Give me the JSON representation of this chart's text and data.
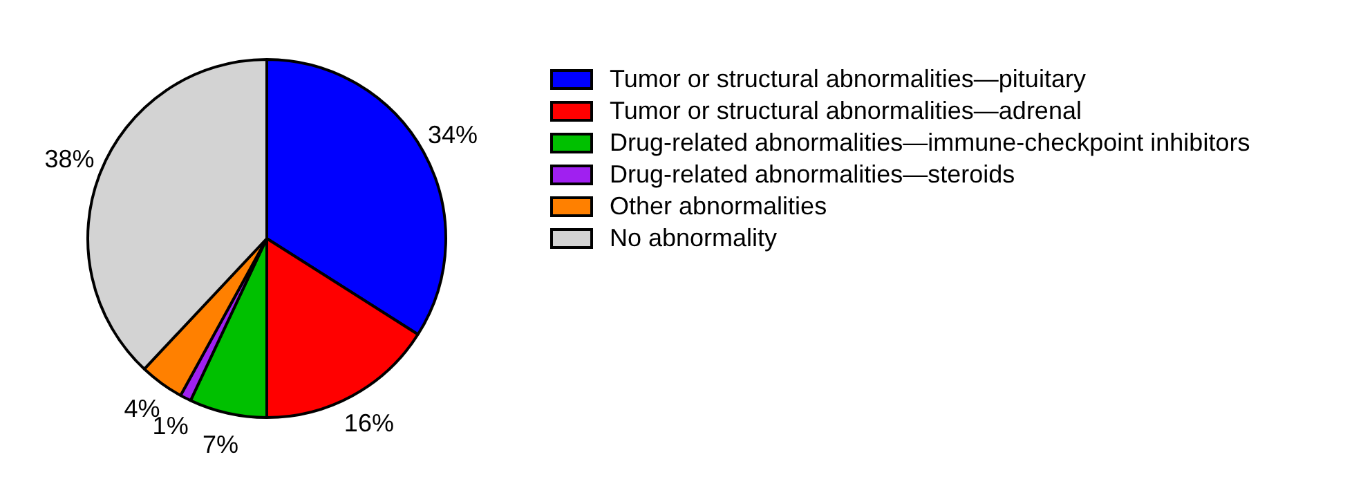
{
  "chart_data": {
    "type": "pie",
    "categories": [
      "Tumor or structural abnormalities—pituitary",
      "Tumor or structural abnormalities—adrenal",
      "Drug-related abnormalities—immune-checkpoint inhibitors",
      "Drug-related abnormalities—steroids",
      "Other abnormalities",
      "No abnormality"
    ],
    "values": [
      34,
      16,
      7,
      1,
      4,
      38
    ],
    "colors": [
      "#0000ff",
      "#ff0000",
      "#00c000",
      "#a020f0",
      "#ff8000",
      "#d3d3d3"
    ],
    "value_labels": [
      "34%",
      "16%",
      "7%",
      "1%",
      "4%",
      "38%"
    ],
    "legend": "top right"
  }
}
